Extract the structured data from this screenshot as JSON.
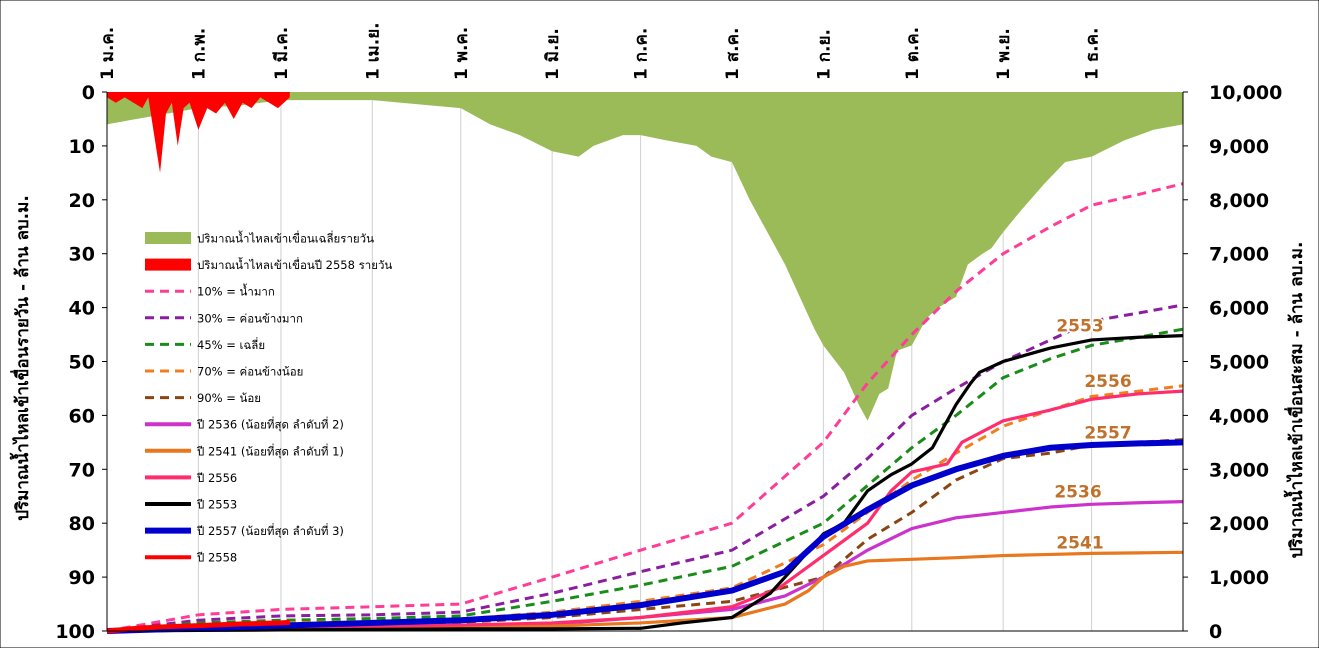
{
  "chart_data": {
    "type": "area",
    "months": [
      "1 ม.ค.",
      "1 ก.พ.",
      "1 มี.ค.",
      "1 เม.ย.",
      "1 พ.ค.",
      "1 มิ.ย.",
      "1 ก.ค.",
      "1 ส.ค.",
      "1 ก.ย.",
      "1 ต.ค.",
      "1 พ.ย.",
      "1 ธ.ค."
    ],
    "month_days": [
      0,
      31,
      59,
      90,
      120,
      151,
      181,
      212,
      243,
      273,
      304,
      334
    ],
    "y_left_label": "ปริมาณน้ำไหลเข้าเขื่อนรายวัน  - ล้าน ลบ.ม.",
    "y_right_label": "ปริมาณน้ำไหลเข้าเขื่อนสะสม - ล้าน ลบ.ม.",
    "y_left_ticks": [
      "0",
      "10",
      "20",
      "30",
      "40",
      "50",
      "60",
      "70",
      "80",
      "90",
      "100"
    ],
    "y_right_ticks": [
      "10,000",
      "9,000",
      "8,000",
      "7,000",
      "6,000",
      "5,000",
      "4,000",
      "3,000",
      "2,000",
      "1,000",
      "0"
    ],
    "y_left_range": [
      0,
      100
    ],
    "y_right_range": [
      0,
      10000
    ],
    "x_range_days": [
      0,
      365
    ],
    "daily_average": {
      "name": "ปริมาณน้ำไหลเข้าเขื่อนเฉลี่ยรายวัน",
      "color": "#9bbb59",
      "days": [
        0,
        10,
        31,
        45,
        59,
        75,
        90,
        110,
        120,
        130,
        140,
        151,
        160,
        165,
        175,
        181,
        190,
        200,
        205,
        212,
        218,
        225,
        230,
        235,
        240,
        243,
        250,
        255,
        258,
        262,
        265,
        268,
        273,
        278,
        282,
        288,
        292,
        297,
        300,
        304,
        310,
        318,
        325,
        334,
        345,
        355,
        365
      ],
      "values": [
        6,
        5,
        3,
        2.5,
        1.5,
        1.5,
        1.5,
        2.5,
        3,
        6,
        8,
        11,
        12,
        10,
        8,
        8,
        9,
        10,
        12,
        13,
        20,
        27,
        32,
        38,
        44,
        47,
        52,
        58,
        61,
        56,
        55,
        48,
        47,
        42,
        40,
        38,
        32,
        30,
        29,
        26,
        22,
        17,
        13,
        12,
        9,
        7,
        6
      ]
    },
    "daily_2558": {
      "name": "ปริมาณน้ำไหลเข้าเขื่อนปี 2558 รายวัน",
      "color": "#ff0000",
      "days": [
        0,
        3,
        6,
        9,
        12,
        14,
        16,
        18,
        20,
        22,
        24,
        26,
        28,
        31,
        34,
        37,
        40,
        43,
        46,
        49,
        52,
        55,
        58,
        60,
        62
      ],
      "values": [
        1,
        2,
        1,
        2,
        3,
        1,
        8,
        15,
        4,
        2,
        10,
        3,
        2,
        7,
        3,
        4,
        2,
        5,
        2,
        3,
        1,
        2,
        3,
        2,
        1
      ]
    },
    "percentiles": [
      {
        "name": "10% = น้ำมาก",
        "color": "#ff3c96",
        "days": [
          0,
          31,
          59,
          90,
          120,
          151,
          181,
          212,
          243,
          258,
          273,
          288,
          304,
          320,
          334,
          350,
          365
        ],
        "values": [
          0,
          300,
          400,
          450,
          500,
          1000,
          1500,
          2000,
          3500,
          4600,
          5500,
          6300,
          7000,
          7500,
          7900,
          8100,
          8300
        ]
      },
      {
        "name": "30% = ค่อนข้างมาก",
        "color": "#8b1ea0",
        "days": [
          0,
          31,
          59,
          90,
          120,
          151,
          181,
          212,
          243,
          258,
          273,
          288,
          304,
          320,
          334,
          350,
          365
        ],
        "values": [
          0,
          200,
          280,
          300,
          350,
          700,
          1100,
          1500,
          2500,
          3200,
          4000,
          4500,
          5000,
          5400,
          5750,
          5900,
          6050
        ]
      },
      {
        "name": "45% = เฉลี่ย",
        "color": "#1a8c1a",
        "days": [
          0,
          31,
          59,
          90,
          120,
          151,
          181,
          212,
          243,
          258,
          273,
          288,
          304,
          320,
          334,
          350,
          365
        ],
        "values": [
          0,
          150,
          200,
          230,
          280,
          550,
          850,
          1200,
          2000,
          2700,
          3400,
          4000,
          4700,
          5050,
          5300,
          5450,
          5600
        ]
      },
      {
        "name": "70% = ค่อนข้างน้อย",
        "color": "#f07e1e",
        "days": [
          0,
          31,
          59,
          90,
          120,
          151,
          181,
          212,
          243,
          258,
          273,
          288,
          304,
          320,
          334,
          350,
          365
        ],
        "values": [
          0,
          100,
          150,
          180,
          220,
          350,
          550,
          800,
          1600,
          2200,
          2800,
          3300,
          3800,
          4100,
          4350,
          4450,
          4550
        ]
      },
      {
        "name": "90% = น้อย",
        "color": "#8b4513",
        "days": [
          0,
          31,
          59,
          90,
          120,
          151,
          181,
          212,
          243,
          258,
          273,
          288,
          304,
          320,
          334,
          350,
          365
        ],
        "values": [
          0,
          70,
          100,
          130,
          160,
          250,
          400,
          550,
          1000,
          1700,
          2200,
          2800,
          3200,
          3300,
          3450,
          3500,
          3550
        ]
      }
    ],
    "years": [
      {
        "name": "ปี 2536 (น้อยที่สุด ลำดับที่ 2)",
        "label": "2536",
        "color": "#cc33cc",
        "days": [
          0,
          31,
          59,
          90,
          120,
          151,
          181,
          212,
          230,
          243,
          258,
          273,
          288,
          304,
          320,
          334,
          350,
          365
        ],
        "values": [
          0,
          20,
          40,
          60,
          80,
          130,
          250,
          400,
          650,
          1000,
          1500,
          1900,
          2100,
          2200,
          2300,
          2350,
          2380,
          2400
        ]
      },
      {
        "name": "ปี 2541 (น้อยที่สุด ลำดับที่ 1)",
        "label": "2541",
        "color": "#e8771e",
        "days": [
          0,
          31,
          59,
          90,
          120,
          151,
          181,
          212,
          230,
          238,
          243,
          250,
          258,
          273,
          288,
          304,
          320,
          334,
          350,
          365
        ],
        "values": [
          0,
          20,
          40,
          55,
          70,
          90,
          150,
          250,
          500,
          750,
          1000,
          1200,
          1300,
          1330,
          1360,
          1400,
          1420,
          1440,
          1450,
          1460
        ]
      },
      {
        "name": "ปี 2556",
        "label": "2556",
        "color": "#ff2d6e",
        "days": [
          0,
          31,
          59,
          90,
          120,
          151,
          181,
          212,
          228,
          243,
          258,
          266,
          273,
          285,
          290,
          304,
          320,
          334,
          350,
          365
        ],
        "values": [
          0,
          40,
          70,
          90,
          110,
          150,
          250,
          450,
          800,
          1400,
          2000,
          2600,
          2950,
          3100,
          3500,
          3900,
          4100,
          4300,
          4400,
          4450
        ]
      },
      {
        "name": "ปี 2553",
        "label": "2553",
        "color": "#000000",
        "days": [
          0,
          31,
          59,
          90,
          120,
          151,
          181,
          195,
          212,
          225,
          235,
          243,
          250,
          258,
          266,
          273,
          280,
          288,
          293,
          296,
          304,
          320,
          334,
          350,
          365
        ],
        "values": [
          0,
          10,
          20,
          30,
          40,
          40,
          50,
          150,
          250,
          700,
          1300,
          1800,
          2000,
          2600,
          2900,
          3100,
          3400,
          4200,
          4600,
          4800,
          5000,
          5250,
          5400,
          5450,
          5480
        ]
      },
      {
        "name": "ปี 2557 (น้อยที่สุด ลำดับที่ 3)",
        "label": "2557",
        "color": "#0000cc",
        "days": [
          0,
          31,
          59,
          90,
          120,
          151,
          181,
          212,
          230,
          243,
          258,
          273,
          288,
          304,
          320,
          334,
          350,
          365
        ],
        "values": [
          0,
          50,
          100,
          150,
          200,
          300,
          480,
          750,
          1100,
          1750,
          2250,
          2700,
          3000,
          3250,
          3400,
          3450,
          3480,
          3500
        ]
      },
      {
        "name": "ปี 2558",
        "label": "",
        "color": "#ff0000",
        "days": [
          0,
          10,
          20,
          31,
          45,
          59,
          62
        ],
        "values": [
          0,
          50,
          80,
          100,
          130,
          150,
          160
        ]
      }
    ]
  }
}
